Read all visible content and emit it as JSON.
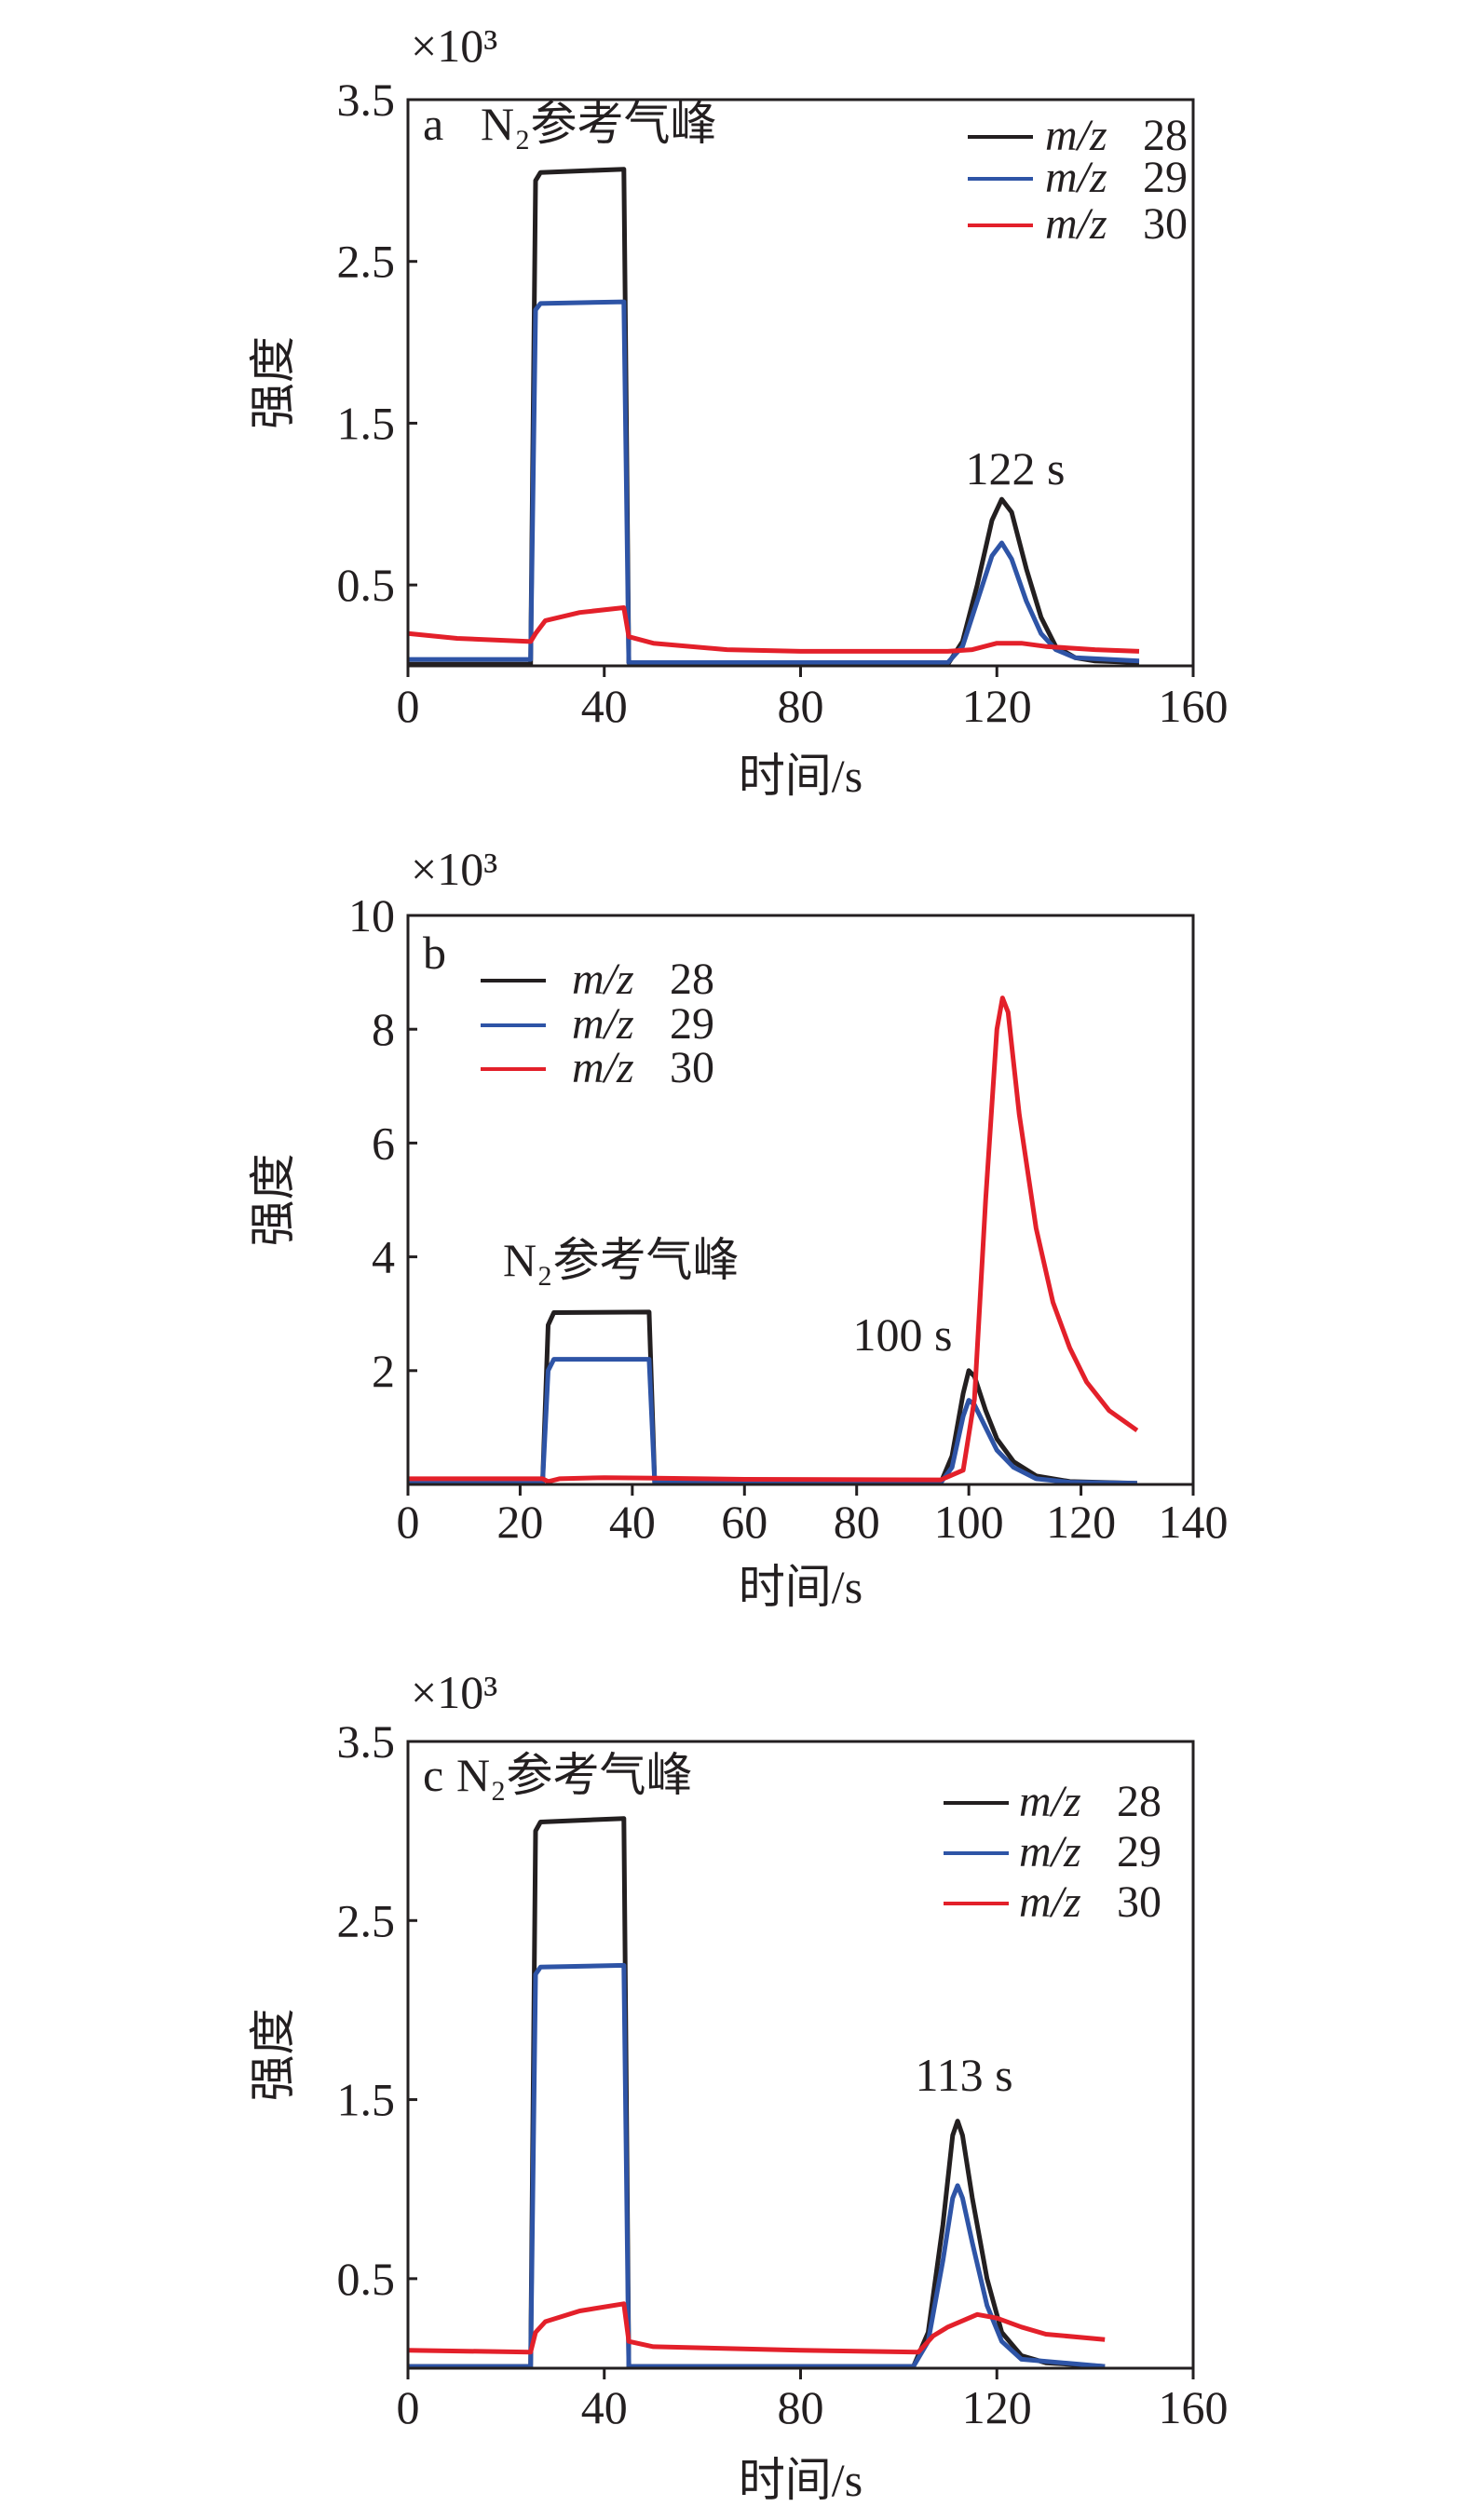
{
  "chart_data": [
    {
      "type": "line",
      "panel_label": "a",
      "annotation": "N₂参考气峰",
      "peak_label": "122 s",
      "scale_label": "×10³",
      "xlabel": "时间/s",
      "ylabel": "强度",
      "xlim": [
        0,
        160
      ],
      "ylim": [
        0,
        3.5
      ],
      "xticks": [
        "0",
        "40",
        "80",
        "120",
        "160"
      ],
      "xtick_values": [
        0,
        40,
        80,
        120,
        160
      ],
      "yticks": [
        "3.5",
        "2.5",
        "1.5",
        "0.5"
      ],
      "ytick_values": [
        3.5,
        2.5,
        1.5,
        0.5
      ],
      "legend_position": "top-right",
      "series": [
        {
          "name": "m/z 28",
          "italic": "m/z",
          "num": "28",
          "color": "#231f20",
          "points": [
            [
              0,
              0.01
            ],
            [
              25,
              0.01
            ],
            [
              26,
              3.0
            ],
            [
              27,
              3.05
            ],
            [
              44,
              3.07
            ],
            [
              45,
              0.02
            ],
            [
              60,
              0.01
            ],
            [
              110,
              0.01
            ],
            [
              113,
              0.15
            ],
            [
              116,
              0.5
            ],
            [
              119,
              0.9
            ],
            [
              121,
              1.03
            ],
            [
              123,
              0.95
            ],
            [
              126,
              0.6
            ],
            [
              129,
              0.3
            ],
            [
              132,
              0.12
            ],
            [
              136,
              0.05
            ],
            [
              140,
              0.03
            ],
            [
              149,
              0.02
            ]
          ]
        },
        {
          "name": "m/z 29",
          "italic": "m/z",
          "num": "29",
          "color": "#2e54a6",
          "points": [
            [
              0,
              0.04
            ],
            [
              25,
              0.04
            ],
            [
              26,
              2.2
            ],
            [
              27,
              2.24
            ],
            [
              44,
              2.25
            ],
            [
              45,
              0.02
            ],
            [
              110,
              0.02
            ],
            [
              113,
              0.12
            ],
            [
              116,
              0.4
            ],
            [
              119,
              0.68
            ],
            [
              121,
              0.76
            ],
            [
              123,
              0.66
            ],
            [
              126,
              0.4
            ],
            [
              129,
              0.2
            ],
            [
              132,
              0.1
            ],
            [
              136,
              0.05
            ],
            [
              149,
              0.03
            ]
          ]
        },
        {
          "name": "m/z 30",
          "italic": "m/z",
          "num": "30",
          "color": "#e3202a",
          "points": [
            [
              0,
              0.2
            ],
            [
              10,
              0.17
            ],
            [
              25,
              0.15
            ],
            [
              26,
              0.2
            ],
            [
              28,
              0.28
            ],
            [
              35,
              0.33
            ],
            [
              44,
              0.36
            ],
            [
              45,
              0.18
            ],
            [
              50,
              0.14
            ],
            [
              65,
              0.1
            ],
            [
              80,
              0.09
            ],
            [
              110,
              0.09
            ],
            [
              115,
              0.1
            ],
            [
              120,
              0.14
            ],
            [
              125,
              0.14
            ],
            [
              130,
              0.12
            ],
            [
              140,
              0.1
            ],
            [
              149,
              0.09
            ]
          ]
        }
      ]
    },
    {
      "type": "line",
      "panel_label": "b",
      "annotation": "N₂参考气峰",
      "peak_label": "100 s",
      "scale_label": "×10³",
      "xlabel": "时间/s",
      "ylabel": "强度",
      "xlim": [
        0,
        140
      ],
      "ylim": [
        0,
        10
      ],
      "xticks": [
        "0",
        "20",
        "40",
        "60",
        "80",
        "100",
        "120",
        "140"
      ],
      "xtick_values": [
        0,
        20,
        40,
        60,
        80,
        100,
        120,
        140
      ],
      "yticks": [
        "10",
        "8",
        "6",
        "4",
        "2"
      ],
      "ytick_values": [
        10,
        8,
        6,
        4,
        2
      ],
      "legend_position": "top-left",
      "series": [
        {
          "name": "m/z 28",
          "italic": "m/z",
          "num": "28",
          "color": "#231f20",
          "points": [
            [
              0,
              0.02
            ],
            [
              24,
              0.02
            ],
            [
              25,
              2.8
            ],
            [
              26,
              3.02
            ],
            [
              43,
              3.03
            ],
            [
              44,
              0.03
            ],
            [
              95,
              0.03
            ],
            [
              97,
              0.5
            ],
            [
              99,
              1.6
            ],
            [
              100,
              2.0
            ],
            [
              101,
              1.9
            ],
            [
              103,
              1.3
            ],
            [
              105,
              0.8
            ],
            [
              108,
              0.4
            ],
            [
              112,
              0.15
            ],
            [
              118,
              0.05
            ],
            [
              130,
              0.02
            ]
          ]
        },
        {
          "name": "m/z 29",
          "italic": "m/z",
          "num": "29",
          "color": "#2e54a6",
          "points": [
            [
              0,
              0.02
            ],
            [
              24,
              0.02
            ],
            [
              25,
              2.0
            ],
            [
              26,
              2.2
            ],
            [
              43,
              2.2
            ],
            [
              44,
              0.03
            ],
            [
              95,
              0.03
            ],
            [
              97,
              0.3
            ],
            [
              99,
              1.2
            ],
            [
              100,
              1.48
            ],
            [
              101,
              1.4
            ],
            [
              103,
              1.0
            ],
            [
              105,
              0.6
            ],
            [
              108,
              0.3
            ],
            [
              112,
              0.1
            ],
            [
              118,
              0.04
            ],
            [
              130,
              0.02
            ]
          ]
        },
        {
          "name": "m/z 30",
          "italic": "m/z",
          "num": "30",
          "color": "#e3202a",
          "points": [
            [
              0,
              0.1
            ],
            [
              24,
              0.1
            ],
            [
              25,
              0.05
            ],
            [
              27,
              0.1
            ],
            [
              35,
              0.12
            ],
            [
              44,
              0.11
            ],
            [
              60,
              0.09
            ],
            [
              95,
              0.08
            ],
            [
              99,
              0.25
            ],
            [
              101,
              1.5
            ],
            [
              103,
              5.0
            ],
            [
              105,
              8.0
            ],
            [
              106,
              8.55
            ],
            [
              107,
              8.3
            ],
            [
              109,
              6.5
            ],
            [
              112,
              4.5
            ],
            [
              115,
              3.2
            ],
            [
              118,
              2.4
            ],
            [
              121,
              1.8
            ],
            [
              125,
              1.3
            ],
            [
              130,
              0.95
            ]
          ]
        }
      ]
    },
    {
      "type": "line",
      "panel_label": "c",
      "annotation": "N₂参考气峰",
      "peak_label": "113 s",
      "scale_label": "×10³",
      "xlabel": "时间/s",
      "ylabel": "强度",
      "xlim": [
        0,
        160
      ],
      "ylim": [
        0,
        3.5
      ],
      "xticks": [
        "0",
        "40",
        "80",
        "120",
        "160"
      ],
      "xtick_values": [
        0,
        40,
        80,
        120,
        160
      ],
      "yticks": [
        "3.5",
        "2.5",
        "1.5",
        "0.5"
      ],
      "ytick_values": [
        3.5,
        2.5,
        1.5,
        0.5
      ],
      "legend_position": "top-right",
      "series": [
        {
          "name": "m/z 28",
          "italic": "m/z",
          "num": "28",
          "color": "#231f20",
          "points": [
            [
              0,
              0.01
            ],
            [
              25,
              0.01
            ],
            [
              26,
              3.0
            ],
            [
              27,
              3.05
            ],
            [
              44,
              3.07
            ],
            [
              45,
              0.01
            ],
            [
              103,
              0.01
            ],
            [
              106,
              0.2
            ],
            [
              109,
              0.8
            ],
            [
              111,
              1.3
            ],
            [
              112,
              1.38
            ],
            [
              113,
              1.3
            ],
            [
              115,
              0.95
            ],
            [
              118,
              0.5
            ],
            [
              121,
              0.2
            ],
            [
              125,
              0.07
            ],
            [
              130,
              0.03
            ],
            [
              142,
              0.01
            ]
          ]
        },
        {
          "name": "m/z 29",
          "italic": "m/z",
          "num": "29",
          "color": "#2e54a6",
          "points": [
            [
              0,
              0.01
            ],
            [
              25,
              0.01
            ],
            [
              26,
              2.2
            ],
            [
              27,
              2.24
            ],
            [
              44,
              2.25
            ],
            [
              45,
              0.01
            ],
            [
              103,
              0.01
            ],
            [
              106,
              0.15
            ],
            [
              109,
              0.6
            ],
            [
              111,
              0.95
            ],
            [
              112,
              1.02
            ],
            [
              113,
              0.95
            ],
            [
              115,
              0.7
            ],
            [
              118,
              0.35
            ],
            [
              121,
              0.15
            ],
            [
              125,
              0.05
            ],
            [
              142,
              0.01
            ]
          ]
        },
        {
          "name": "m/z 30",
          "italic": "m/z",
          "num": "30",
          "color": "#e3202a",
          "points": [
            [
              0,
              0.1
            ],
            [
              25,
              0.09
            ],
            [
              26,
              0.2
            ],
            [
              28,
              0.26
            ],
            [
              35,
              0.32
            ],
            [
              44,
              0.36
            ],
            [
              45,
              0.15
            ],
            [
              50,
              0.12
            ],
            [
              80,
              0.1
            ],
            [
              104,
              0.09
            ],
            [
              107,
              0.18
            ],
            [
              110,
              0.23
            ],
            [
              116,
              0.3
            ],
            [
              120,
              0.28
            ],
            [
              125,
              0.23
            ],
            [
              130,
              0.19
            ],
            [
              142,
              0.16
            ]
          ]
        }
      ]
    }
  ]
}
